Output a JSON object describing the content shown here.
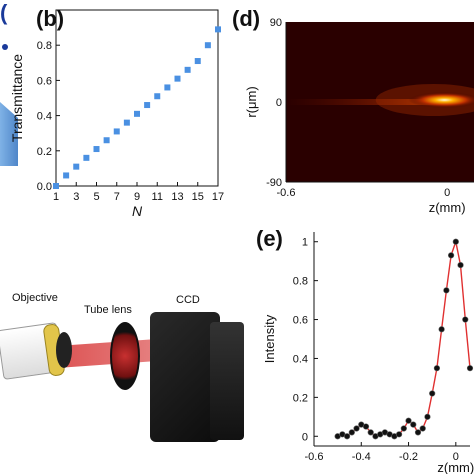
{
  "labels": {
    "b": "(b)",
    "d": "(d)",
    "e": "(e)",
    "a_left": "("
  },
  "setup": {
    "objective": "Objective",
    "tube_lens": "Tube lens",
    "ccd": "CCD"
  },
  "colors": {
    "marker_b": "#4a90e2",
    "fit_e": "#e03030",
    "markers_e": "#111111",
    "heatmap_bg": "#2a0000"
  },
  "chart_data": [
    {
      "id": "b",
      "type": "scatter",
      "xlabel": "N",
      "ylabel": "Transmittance",
      "xlim": [
        1,
        17
      ],
      "ylim": [
        0,
        1.0
      ],
      "xticks": [
        1,
        3,
        5,
        7,
        9,
        11,
        13,
        15,
        17
      ],
      "yticks": [
        0.0,
        0.2,
        0.4,
        0.6,
        0.8
      ],
      "ytick_labels": [
        "0.0",
        "0.2",
        "0.4",
        "0.6",
        "0.8"
      ],
      "x": [
        1,
        2,
        3,
        4,
        5,
        6,
        7,
        8,
        9,
        10,
        11,
        12,
        13,
        14,
        15,
        16,
        17
      ],
      "y": [
        0.0,
        0.06,
        0.11,
        0.16,
        0.21,
        0.26,
        0.31,
        0.36,
        0.41,
        0.46,
        0.51,
        0.56,
        0.61,
        0.66,
        0.71,
        0.8,
        0.89
      ]
    },
    {
      "id": "d",
      "type": "heatmap",
      "xlabel": "z(mm)",
      "ylabel": "r(μm)",
      "xlim": [
        -0.6,
        0.1
      ],
      "ylim": [
        -90,
        90
      ],
      "xticks": [
        -0.6,
        0
      ],
      "xtick_labels": [
        "-0.6",
        "0"
      ],
      "yticks": [
        -90,
        0,
        90
      ],
      "ytick_labels": [
        "-90",
        "0",
        "90"
      ]
    },
    {
      "id": "e",
      "type": "line",
      "xlabel": "z(mm)",
      "ylabel": "Intensity",
      "xlim": [
        -0.6,
        0.06
      ],
      "ylim": [
        -0.05,
        1.05
      ],
      "xticks": [
        -0.6,
        -0.4,
        -0.2,
        0
      ],
      "xtick_labels": [
        "-0.6",
        "-0.4",
        "-0.2",
        "0"
      ],
      "yticks": [
        0,
        0.2,
        0.4,
        0.6,
        0.8,
        1
      ],
      "ytick_labels": [
        "0",
        "0.2",
        "0.4",
        "0.6",
        "0.8",
        "1"
      ],
      "series": [
        {
          "x": [
            -0.5,
            -0.48,
            -0.46,
            -0.44,
            -0.42,
            -0.4,
            -0.38,
            -0.36,
            -0.34,
            -0.32,
            -0.3,
            -0.28,
            -0.26,
            -0.24,
            -0.22,
            -0.2,
            -0.18,
            -0.16,
            -0.14,
            -0.12,
            -0.1,
            -0.08,
            -0.06,
            -0.04,
            -0.02,
            0.0,
            0.02,
            0.04,
            0.06
          ],
          "y": [
            0.0,
            0.01,
            0.0,
            0.02,
            0.04,
            0.06,
            0.05,
            0.02,
            0.0,
            0.01,
            0.02,
            0.01,
            0.0,
            0.01,
            0.04,
            0.08,
            0.06,
            0.02,
            0.04,
            0.1,
            0.22,
            0.35,
            0.55,
            0.75,
            0.93,
            1.0,
            0.88,
            0.6,
            0.35
          ]
        }
      ]
    }
  ]
}
